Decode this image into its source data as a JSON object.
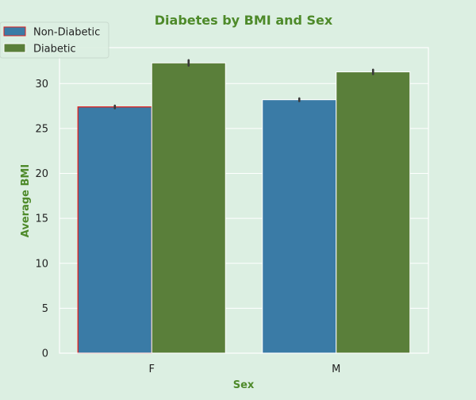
{
  "chart_data": {
    "type": "bar",
    "title": "Diabetes by BMI and Sex",
    "xlabel": "Sex",
    "ylabel": "Average BMI",
    "categories": [
      "F",
      "M"
    ],
    "series": [
      {
        "name": "Non-Diabetic",
        "values": [
          27.4,
          28.2
        ],
        "error": [
          0.15,
          0.15
        ]
      },
      {
        "name": "Diabetic",
        "values": [
          32.3,
          31.3
        ],
        "error": [
          0.3,
          0.25
        ]
      }
    ],
    "ylim": [
      0,
      34
    ],
    "yticks": [
      0,
      5,
      10,
      15,
      20,
      25,
      30
    ],
    "grid": true,
    "legend": "top-left",
    "colors": {
      "background": "#dcefe2",
      "non_diabetic": "#3a7ba6",
      "diabetic": "#5a7f3a",
      "title": "#4e8a2a",
      "highlight_edge": "#e02020",
      "grid": "#ffffff",
      "text": "#222222",
      "errorbar": "#3a3a3a"
    }
  }
}
